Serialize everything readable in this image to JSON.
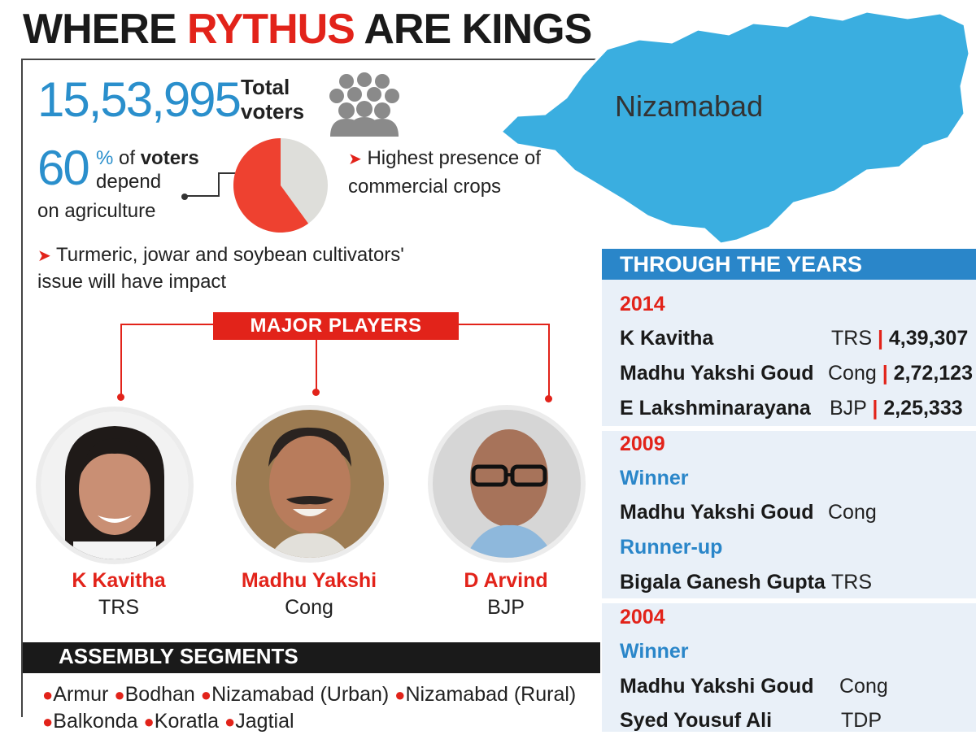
{
  "title": {
    "part1": "WHERE ",
    "highlight": "RYTHUS",
    "part2": " ARE KINGS"
  },
  "voters": {
    "number": "15,53,995",
    "label": "Total voters"
  },
  "agriculture": {
    "percent": "60",
    "percent_sign": "%",
    "of": " of ",
    "voters_word": "voters",
    "depend": "depend",
    "line2": "on agriculture",
    "pie_fraction": 0.6
  },
  "notes": {
    "commercial": "Highest presence of commercial crops",
    "crops_issue": "Turmeric, jowar and soybean cultivators' issue will have impact"
  },
  "major_players": {
    "label": "MAJOR PLAYERS",
    "players": [
      {
        "name": "K Kavitha",
        "party": "TRS"
      },
      {
        "name": "Madhu Yakshi",
        "party": "Cong"
      },
      {
        "name": "D Arvind",
        "party": "BJP"
      }
    ]
  },
  "map": {
    "label": "Nizamabad"
  },
  "assembly": {
    "title": "ASSEMBLY SEGMENTS",
    "segments": [
      "Armur",
      "Bodhan",
      "Nizamabad (Urban)",
      "Nizamabad (Rural)",
      "Balkonda",
      "Koratla",
      "Jagtial"
    ]
  },
  "through_years": {
    "title": "THROUGH THE YEARS",
    "y2014": {
      "year": "2014",
      "rows": [
        {
          "name": "K Kavitha",
          "party": "TRS",
          "votes": "4,39,307"
        },
        {
          "name": "Madhu Yakshi Goud",
          "party": "Cong",
          "votes": "2,72,123"
        },
        {
          "name": "E Lakshminarayana",
          "party": "BJP",
          "votes": "2,25,333"
        }
      ]
    },
    "y2009": {
      "year": "2009",
      "winner_label": "Winner",
      "winner": {
        "name": "Madhu Yakshi Goud",
        "party": "Cong"
      },
      "runner_label": "Runner-up",
      "runner": {
        "name": "Bigala Ganesh Gupta",
        "party": "TRS"
      }
    },
    "y2004": {
      "year": "2004",
      "winner_label": "Winner",
      "winner": {
        "name": "Madhu Yakshi Goud",
        "party": "Cong"
      },
      "runner": {
        "name": "Syed Yousuf Ali",
        "party": "TDP"
      }
    }
  },
  "colors": {
    "accent_red": "#e2231a",
    "accent_blue": "#2a8fcc",
    "map_blue": "#3aaee0",
    "panel_bg": "#e9f0f8"
  }
}
